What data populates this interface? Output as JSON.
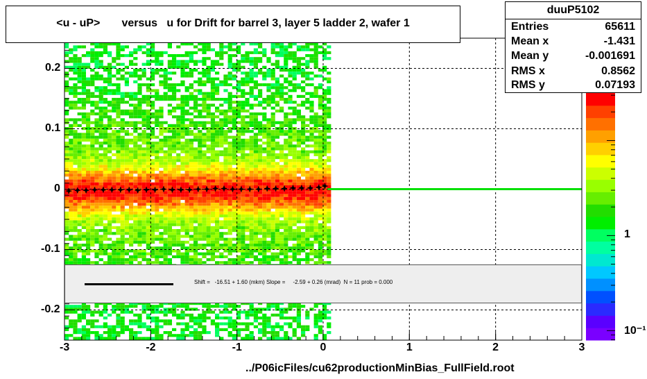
{
  "title": "<u - uP>       versus   u for Drift for barrel 3, layer 5 ladder 2, wafer 1",
  "stats": {
    "name": "duuP5102",
    "rows": [
      {
        "label": "Entries",
        "value": "65611"
      },
      {
        "label": "Mean x",
        "value": "-1.431"
      },
      {
        "label": "Mean y",
        "value": "-0.001691"
      },
      {
        "label": "RMS x",
        "value": "0.8562"
      },
      {
        "label": "RMS y",
        "value": "0.07193"
      }
    ]
  },
  "fit_text": "Shift =   -16.51 + 1.60 (mkm) Slope =     -2.59 + 0.26 (mrad)  N = 11 prob = 0.000",
  "footer": "../P06icFiles/cu62productionMinBias_FullField.root",
  "colors": {
    "fit_line": "#00e000",
    "profile_points": "#000000",
    "palette": [
      "#7a00ff",
      "#5a00ff",
      "#2a2aff",
      "#0050ff",
      "#0090ff",
      "#00c8ff",
      "#00e8d0",
      "#00ffa0",
      "#00ff60",
      "#00ee00",
      "#22dd00",
      "#66ee00",
      "#99ff00",
      "#ccff00",
      "#ffff00",
      "#ffd000",
      "#ffa000",
      "#ff7000",
      "#ff4000",
      "#ff0000"
    ]
  },
  "chart_data": {
    "type": "heatmap",
    "xlim": [
      -3,
      3
    ],
    "ylim": [
      -0.25,
      0.25
    ],
    "x_ticks": [
      -3,
      -2,
      -1,
      0,
      1,
      2,
      3
    ],
    "x_tick_labels": [
      "-3",
      "-2",
      "-1",
      "0",
      "1",
      "2",
      "3"
    ],
    "y_ticks": [
      -0.2,
      -0.1,
      0,
      0.1,
      0.2
    ],
    "y_tick_labels": [
      "-0.2",
      "-0.1",
      "0",
      "0.1",
      "0.2"
    ],
    "grid": true,
    "data_x_range": [
      -3,
      0.05
    ],
    "colorbar_labels": [
      {
        "value": 1,
        "label": "1"
      },
      {
        "value": 0.1,
        "label": "10⁻¹"
      }
    ],
    "profile": {
      "x": [
        -2.95,
        -2.85,
        -2.75,
        -2.65,
        -2.55,
        -2.45,
        -2.35,
        -2.25,
        -2.15,
        -2.05,
        -1.95,
        -1.85,
        -1.75,
        -1.65,
        -1.55,
        -1.45,
        -1.35,
        -1.25,
        -1.15,
        -1.05,
        -0.95,
        -0.85,
        -0.75,
        -0.65,
        -0.55,
        -0.45,
        -0.35,
        -0.25,
        -0.15,
        -0.05,
        0.02
      ],
      "y": [
        -0.003,
        -0.002,
        -0.002,
        -0.001,
        -0.001,
        -0.001,
        -0.001,
        -0.001,
        -0.002,
        -0.001,
        -0.001,
        0.0,
        -0.001,
        -0.001,
        -0.001,
        0.0,
        0.0,
        0.001,
        0.001,
        0.0,
        0.0,
        0.0,
        0.0,
        0.001,
        0.001,
        0.001,
        0.002,
        0.002,
        0.002,
        0.003,
        0.005
      ]
    },
    "fit_line": {
      "x": [
        0.05,
        3
      ],
      "y": [
        0,
        0
      ]
    }
  }
}
